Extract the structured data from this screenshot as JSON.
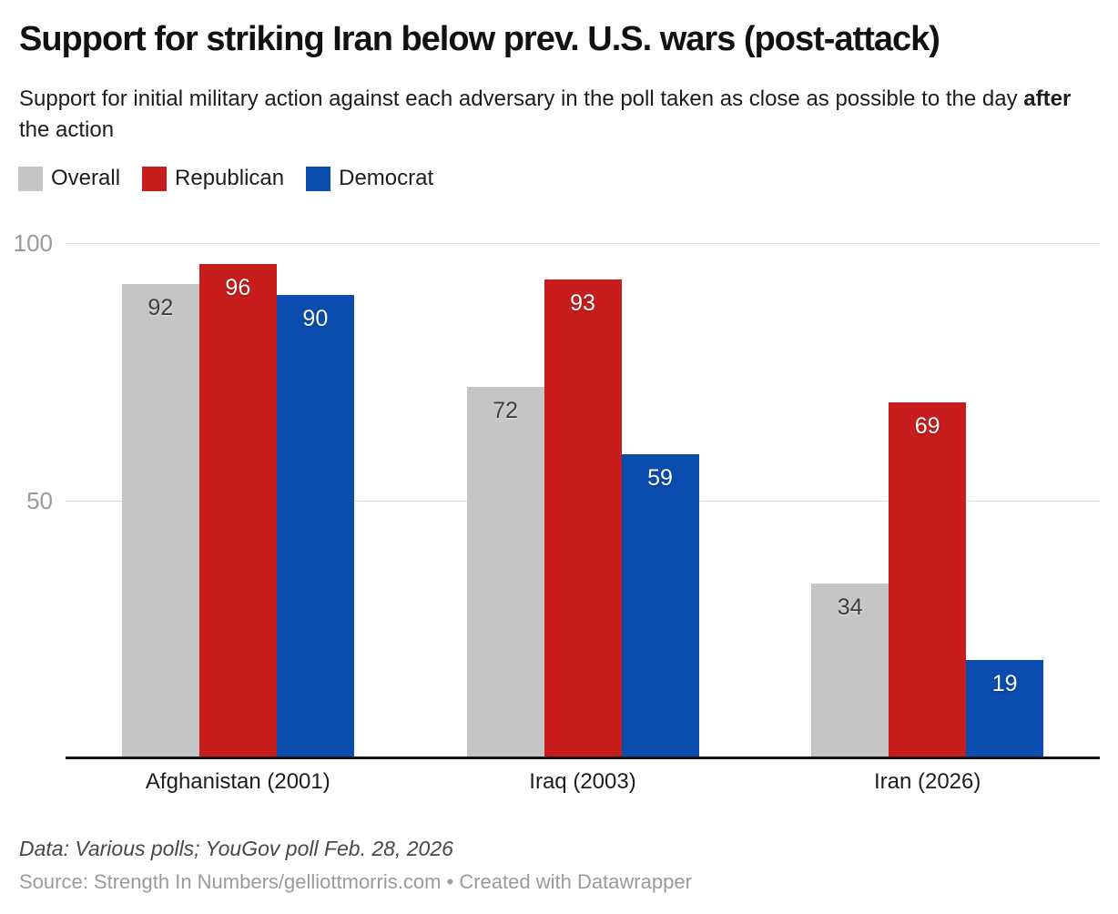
{
  "header": {
    "title": "Support for striking Iran below prev. U.S. wars (post-attack)",
    "subtitle_part1": "Support for initial military action against each adversary in the poll taken as close as possible to the day ",
    "subtitle_bold": "after",
    "subtitle_part2": " the action"
  },
  "chart_data": {
    "type": "bar",
    "title": "Support for striking Iran below prev. U.S. wars (post-attack)",
    "subtitle": "Support for initial military action against each adversary in the poll taken as close as possible to the day after the action",
    "categories": [
      "Afghanistan (2001)",
      "Iraq (2003)",
      "Iran (2026)"
    ],
    "series": [
      {
        "name": "Overall",
        "color": "#c5c5c5",
        "label_color": "dark",
        "values": [
          92,
          72,
          34
        ]
      },
      {
        "name": "Republican",
        "color": "#c71e1d",
        "label_color": "light",
        "values": [
          96,
          93,
          69
        ]
      },
      {
        "name": "Democrat",
        "color": "#0b4dae",
        "label_color": "light",
        "values": [
          90,
          59,
          19
        ]
      }
    ],
    "y_axis": {
      "min": 0,
      "max": 100,
      "ticks": [
        50,
        100
      ]
    },
    "grid": true,
    "legend_position": "top",
    "value_labels": true
  },
  "footer": {
    "data_note": "Data: Various polls; YouGov poll Feb. 28, 2026",
    "source": "Source: Strength In Numbers/gelliottmorris.com • Created with Datawrapper"
  }
}
